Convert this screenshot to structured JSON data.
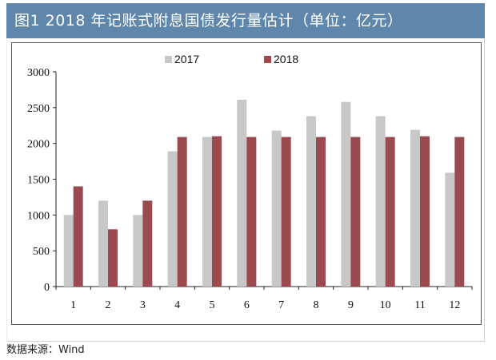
{
  "title": "图1 2018 年记账式附息国债发行量估计（单位：亿元）",
  "source": "数据来源：Wind",
  "chart_data": {
    "type": "bar",
    "categories": [
      "1",
      "2",
      "3",
      "4",
      "5",
      "6",
      "7",
      "8",
      "9",
      "10",
      "11",
      "12"
    ],
    "series": [
      {
        "name": "2017",
        "color": "#c8c8c8",
        "values": [
          1000,
          1200,
          1000,
          1890,
          2090,
          2610,
          2180,
          2380,
          2580,
          2380,
          2190,
          1590
        ]
      },
      {
        "name": "2018",
        "color": "#9b4a4f",
        "values": [
          1400,
          800,
          1200,
          2090,
          2100,
          2090,
          2090,
          2090,
          2090,
          2090,
          2100,
          2090
        ]
      }
    ],
    "yticks": [
      0,
      500,
      1000,
      1500,
      2000,
      2500,
      3000
    ],
    "ylim": [
      0,
      3000
    ],
    "legend_position": "top-center",
    "grid": false
  }
}
